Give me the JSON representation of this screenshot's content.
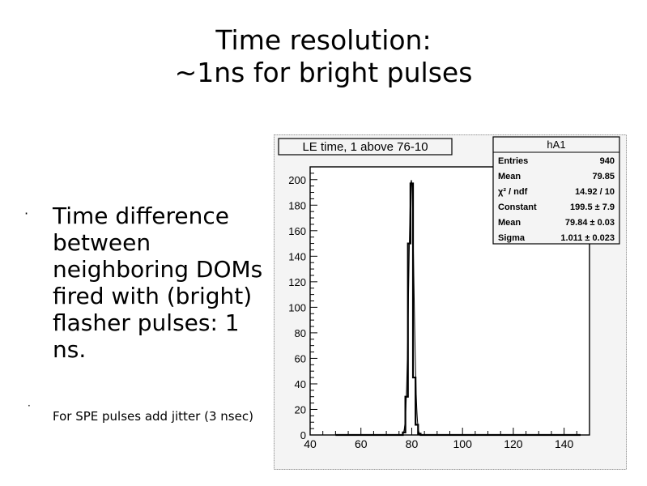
{
  "slide": {
    "title_line1": "Time resolution:",
    "title_line2": "~1ns for bright pulses",
    "bullet_main": {
      "marker": "·",
      "text": "Time difference between neighboring DOMs fired with (bright) flasher pulses: 1 ns."
    },
    "bullet_sub": {
      "marker": "·",
      "text": "For SPE pulses add jitter (3 nsec)"
    }
  },
  "chart_data": {
    "type": "bar",
    "title": "LE time, 1 above 76-10",
    "xlabel": "",
    "ylabel": "",
    "xlim": [
      40,
      150
    ],
    "ylim": [
      0,
      210
    ],
    "x_ticks": [
      40,
      60,
      80,
      100,
      120,
      140
    ],
    "y_ticks": [
      0,
      20,
      40,
      60,
      80,
      100,
      120,
      140,
      160,
      180,
      200
    ],
    "histogram": {
      "bin_width": 1,
      "x": [
        50,
        76,
        77,
        78,
        79,
        80,
        81,
        82,
        83,
        84,
        146
      ],
      "values": [
        0,
        0,
        2,
        30,
        150,
        197,
        45,
        8,
        1,
        0,
        0
      ]
    },
    "fit": {
      "function": "gaussian",
      "constant": 199.5,
      "mean": 79.84,
      "sigma": 1.011
    },
    "stats_box": {
      "name": "hA1",
      "rows": [
        {
          "label": "Entries",
          "value": "940"
        },
        {
          "label": "Mean",
          "value": "79.85"
        },
        {
          "label": "χ² / ndf",
          "value": "14.92 / 10"
        },
        {
          "label": "Constant",
          "value": "199.5 ± 7.9"
        },
        {
          "label": "Mean",
          "value": "79.84 ± 0.03"
        },
        {
          "label": "Sigma",
          "value": "1.011 ± 0.023"
        }
      ]
    },
    "grid": false,
    "legend": "top-right"
  }
}
